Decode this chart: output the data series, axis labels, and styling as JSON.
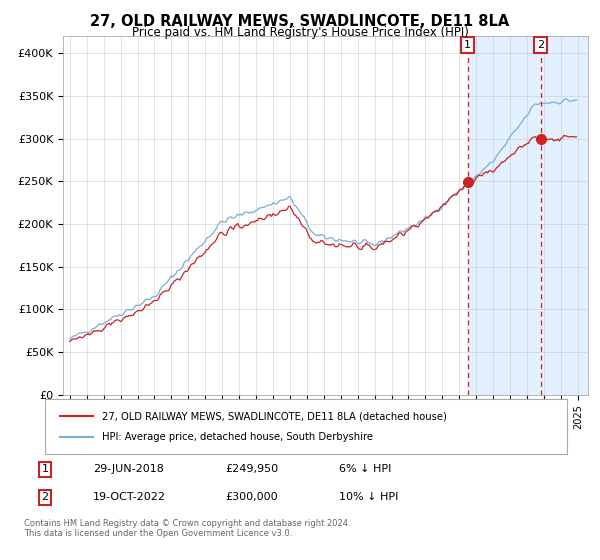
{
  "title": "27, OLD RAILWAY MEWS, SWADLINCOTE, DE11 8LA",
  "subtitle": "Price paid vs. HM Land Registry's House Price Index (HPI)",
  "ylim": [
    0,
    420000
  ],
  "yticks": [
    0,
    50000,
    100000,
    150000,
    200000,
    250000,
    300000,
    350000,
    400000
  ],
  "ytick_labels": [
    "£0",
    "£50K",
    "£100K",
    "£150K",
    "£200K",
    "£250K",
    "£300K",
    "£350K",
    "£400K"
  ],
  "sale1_date": "29-JUN-2018",
  "sale1_price": 249950,
  "sale1_label": "6% ↓ HPI",
  "sale2_date": "19-OCT-2022",
  "sale2_price": 300000,
  "sale2_label": "10% ↓ HPI",
  "legend1": "27, OLD RAILWAY MEWS, SWADLINCOTE, DE11 8LA (detached house)",
  "legend2": "HPI: Average price, detached house, South Derbyshire",
  "footer1": "Contains HM Land Registry data © Crown copyright and database right 2024.",
  "footer2": "This data is licensed under the Open Government Licence v3.0.",
  "hpi_color": "#7aaed6",
  "price_color": "#cc2222",
  "bg_highlight_color": "#ddeeff",
  "sale1_year": 2018.5,
  "sale2_year": 2022.8,
  "start_year": 1995,
  "end_year": 2025
}
